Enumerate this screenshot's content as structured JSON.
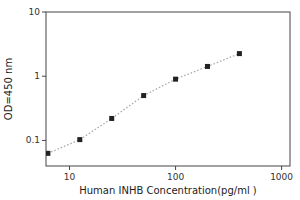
{
  "chart_data": {
    "type": "line",
    "log": true,
    "grid": false,
    "xlabel": "Human INHB Concentration(pg/ml )",
    "ylabel": "OD=450 nm",
    "x": [
      6.25,
      12.5,
      25,
      50,
      100,
      200,
      400
    ],
    "series": [
      {
        "type": "line",
        "line_style": "dotted",
        "color": "#aaaaaa",
        "values": [
          0.063,
          0.103,
          0.22,
          0.5,
          0.9,
          1.42,
          2.25
        ]
      },
      {
        "type": "scatter",
        "marker": "square",
        "color": "#222222",
        "values": [
          0.063,
          0.103,
          0.22,
          0.5,
          0.9,
          1.42,
          2.25
        ]
      }
    ],
    "xlim": [
      6,
      1200
    ],
    "ylim": [
      0.04,
      10
    ],
    "xticks": [
      10,
      100,
      1000
    ],
    "yticks": [
      0.1,
      1,
      10
    ]
  }
}
